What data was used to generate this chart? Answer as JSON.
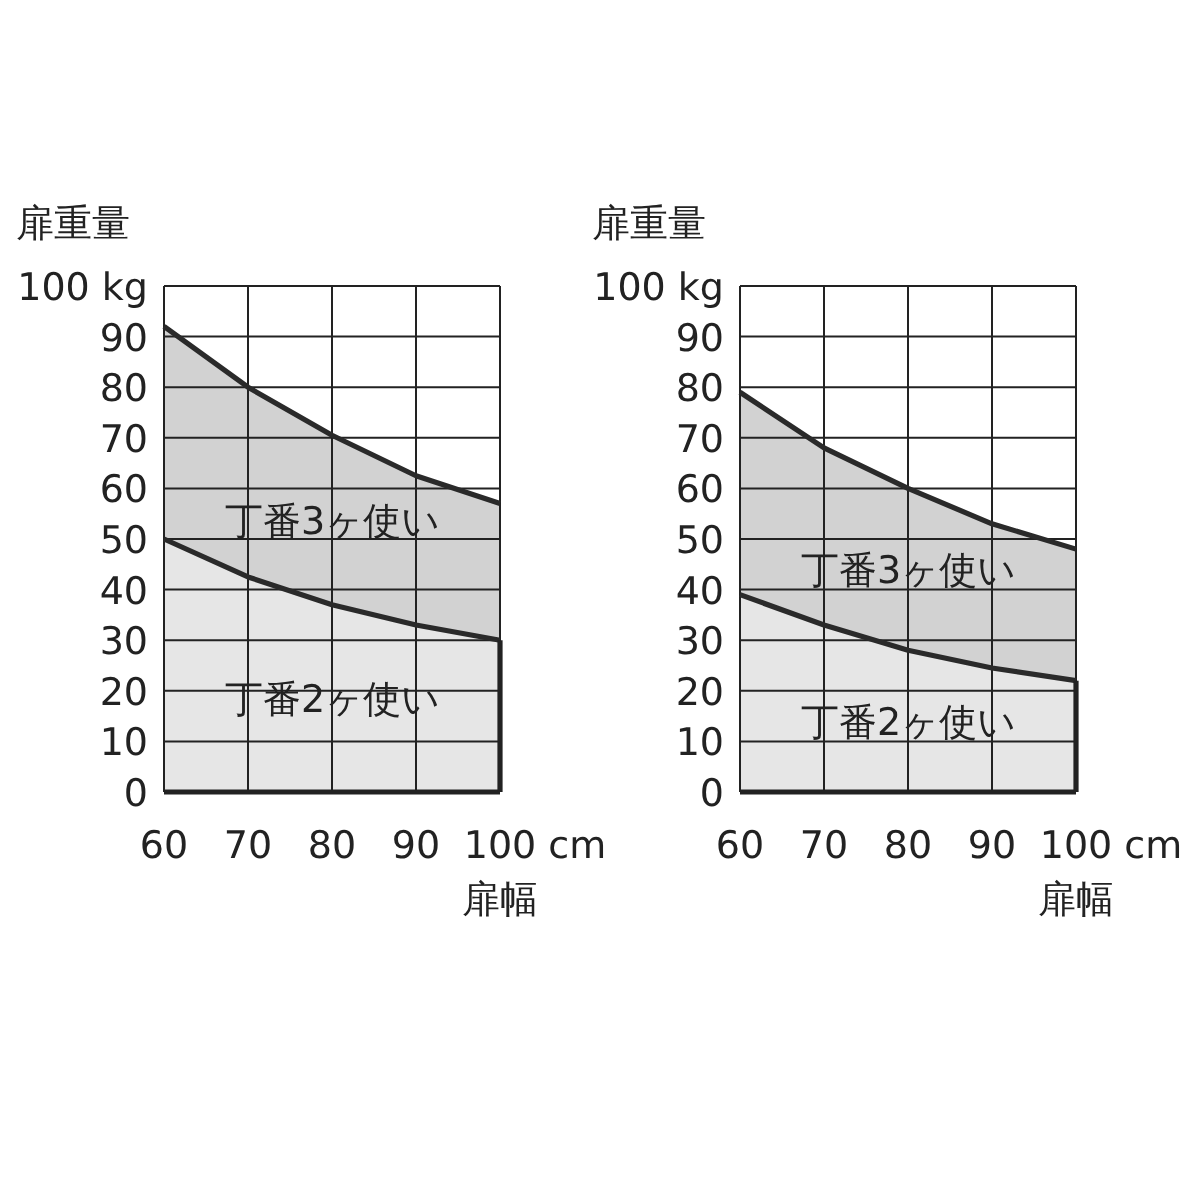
{
  "chart_data": [
    {
      "type": "area",
      "xlabel": "扉幅",
      "ylabel": "扉重量",
      "x": [
        60,
        70,
        80,
        90,
        100
      ],
      "xlim": [
        60,
        100
      ],
      "ylim": [
        0,
        100
      ],
      "xticks": [
        60,
        70,
        80,
        90,
        {
          "value": 100,
          "label": "100 cm"
        }
      ],
      "yticks": [
        0,
        10,
        20,
        30,
        40,
        50,
        60,
        70,
        80,
        90,
        {
          "value": 100,
          "label": "100 kg"
        }
      ],
      "grid": true,
      "series": [
        {
          "name": "丁番3ヶ使い",
          "color": "#d2d2d2",
          "values": [
            92,
            80,
            70.5,
            62.5,
            57
          ]
        },
        {
          "name": "丁番2ヶ使い",
          "color": "#e6e6e6",
          "values": [
            50,
            42.5,
            37,
            33,
            30
          ]
        }
      ]
    },
    {
      "type": "area",
      "xlabel": "扉幅",
      "ylabel": "扉重量",
      "x": [
        60,
        70,
        80,
        90,
        100
      ],
      "xlim": [
        60,
        100
      ],
      "ylim": [
        0,
        100
      ],
      "xticks": [
        60,
        70,
        80,
        90,
        {
          "value": 100,
          "label": "100 cm"
        }
      ],
      "yticks": [
        0,
        10,
        20,
        30,
        40,
        50,
        60,
        70,
        80,
        90,
        {
          "value": 100,
          "label": "100 kg"
        }
      ],
      "grid": true,
      "series": [
        {
          "name": "丁番3ヶ使い",
          "color": "#d2d2d2",
          "values": [
            79,
            68,
            60,
            53,
            48
          ]
        },
        {
          "name": "丁番2ヶ使い",
          "color": "#e6e6e6",
          "values": [
            39,
            33,
            28,
            24.5,
            22
          ]
        }
      ]
    }
  ]
}
